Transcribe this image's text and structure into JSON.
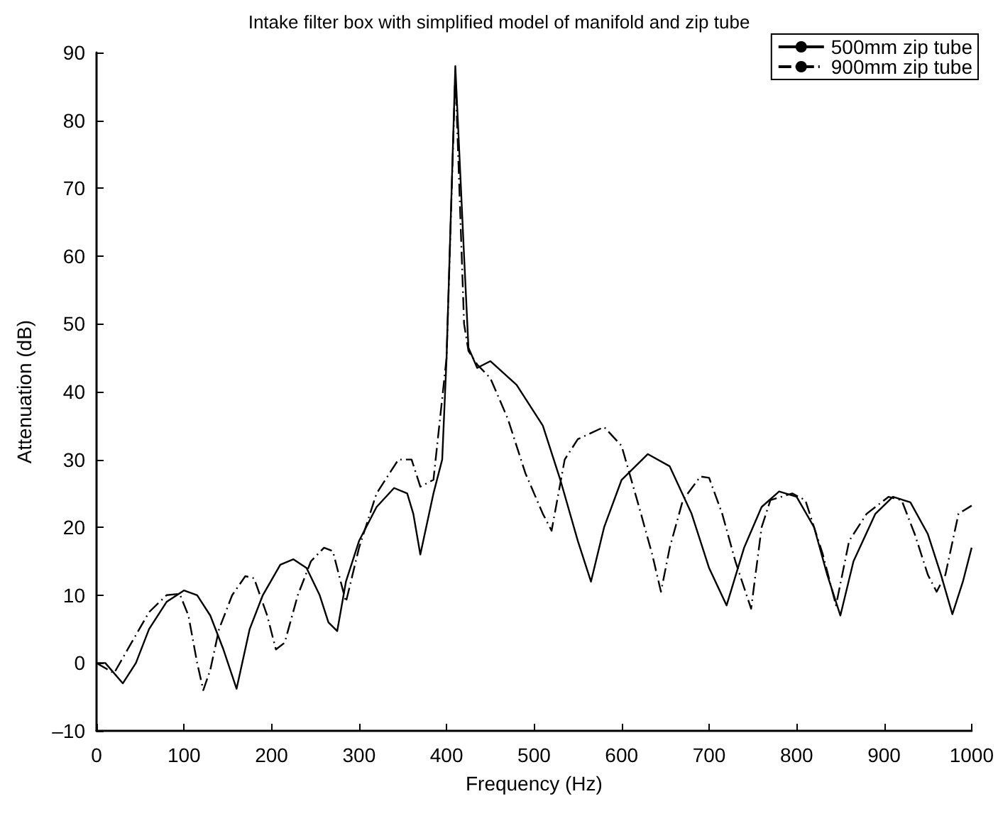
{
  "chart_data": {
    "type": "line",
    "title": "Intake filter box with simplified model of manifold and zip tube",
    "xlabel": "Frequency (Hz)",
    "ylabel": "Attenuation (dB)",
    "xlim": [
      0,
      1000
    ],
    "xticks": [
      0,
      100,
      200,
      300,
      400,
      500,
      600,
      700,
      800,
      900,
      1000
    ],
    "ylim": [
      -10,
      90
    ],
    "yticks": [
      {
        "value": -10,
        "label": "–10"
      },
      0,
      10,
      20,
      30,
      40,
      50,
      60,
      70,
      80,
      90
    ],
    "grid": false,
    "legend": "top right",
    "marker": "none",
    "series": [
      {
        "name": "500mm zip tube",
        "color": "#000000",
        "line_style": "solid",
        "x": [
          0,
          10,
          30,
          45,
          60,
          80,
          100,
          115,
          130,
          145,
          160,
          175,
          190,
          210,
          225,
          240,
          255,
          265,
          275,
          285,
          300,
          320,
          340,
          355,
          362,
          370,
          385,
          395,
          400,
          410,
          420,
          425,
          435,
          450,
          480,
          510,
          530,
          550,
          565,
          580,
          600,
          630,
          655,
          680,
          700,
          720,
          740,
          760,
          780,
          800,
          820,
          835,
          850,
          865,
          890,
          910,
          930,
          950,
          965,
          978,
          990,
          1000
        ],
        "values": [
          0,
          0,
          -3,
          0,
          5,
          9,
          10.7,
          10,
          7,
          2,
          -3.8,
          5,
          10,
          14.5,
          15.3,
          14,
          10,
          6,
          4.7,
          12,
          18,
          23,
          25.8,
          25,
          22,
          16,
          25,
          30,
          45,
          88,
          60,
          46.5,
          43.5,
          44.5,
          41,
          35,
          27,
          18,
          12,
          20,
          27,
          30.8,
          29,
          22,
          14,
          8.5,
          17,
          23,
          25.3,
          24.5,
          20,
          13,
          7,
          15,
          22,
          24.5,
          23.7,
          19,
          13,
          7.2,
          12,
          17
        ]
      },
      {
        "name": "900mm zip tube",
        "color": "#000000",
        "line_style": "dashed",
        "x": [
          0,
          20,
          40,
          60,
          80,
          95,
          105,
          115,
          122,
          130,
          140,
          155,
          170,
          180,
          195,
          205,
          215,
          230,
          245,
          260,
          270,
          285,
          300,
          320,
          345,
          360,
          370,
          385,
          400,
          410,
          420,
          425,
          435,
          450,
          470,
          490,
          510,
          520,
          535,
          550,
          580,
          600,
          620,
          635,
          645,
          655,
          670,
          690,
          700,
          715,
          730,
          748,
          760,
          770,
          795,
          810,
          830,
          845,
          860,
          880,
          905,
          920,
          935,
          950,
          960,
          970,
          985,
          1000
        ],
        "values": [
          0,
          -1.5,
          3,
          7.5,
          10,
          10.2,
          7,
          0,
          -4,
          -1,
          5,
          10,
          12.8,
          12.5,
          7,
          2,
          3,
          10,
          15,
          17,
          16.5,
          9,
          17,
          25,
          30,
          30,
          26,
          27,
          45,
          87,
          50,
          46,
          44,
          42,
          36,
          28,
          22,
          19.5,
          30,
          33,
          34.8,
          32,
          23,
          16,
          10.5,
          17,
          24,
          27.5,
          27.3,
          22,
          15,
          8,
          20,
          24,
          25,
          24,
          16,
          8.5,
          18,
          22,
          24.5,
          24,
          19,
          13,
          10.5,
          13,
          22,
          23.2
        ]
      }
    ]
  }
}
